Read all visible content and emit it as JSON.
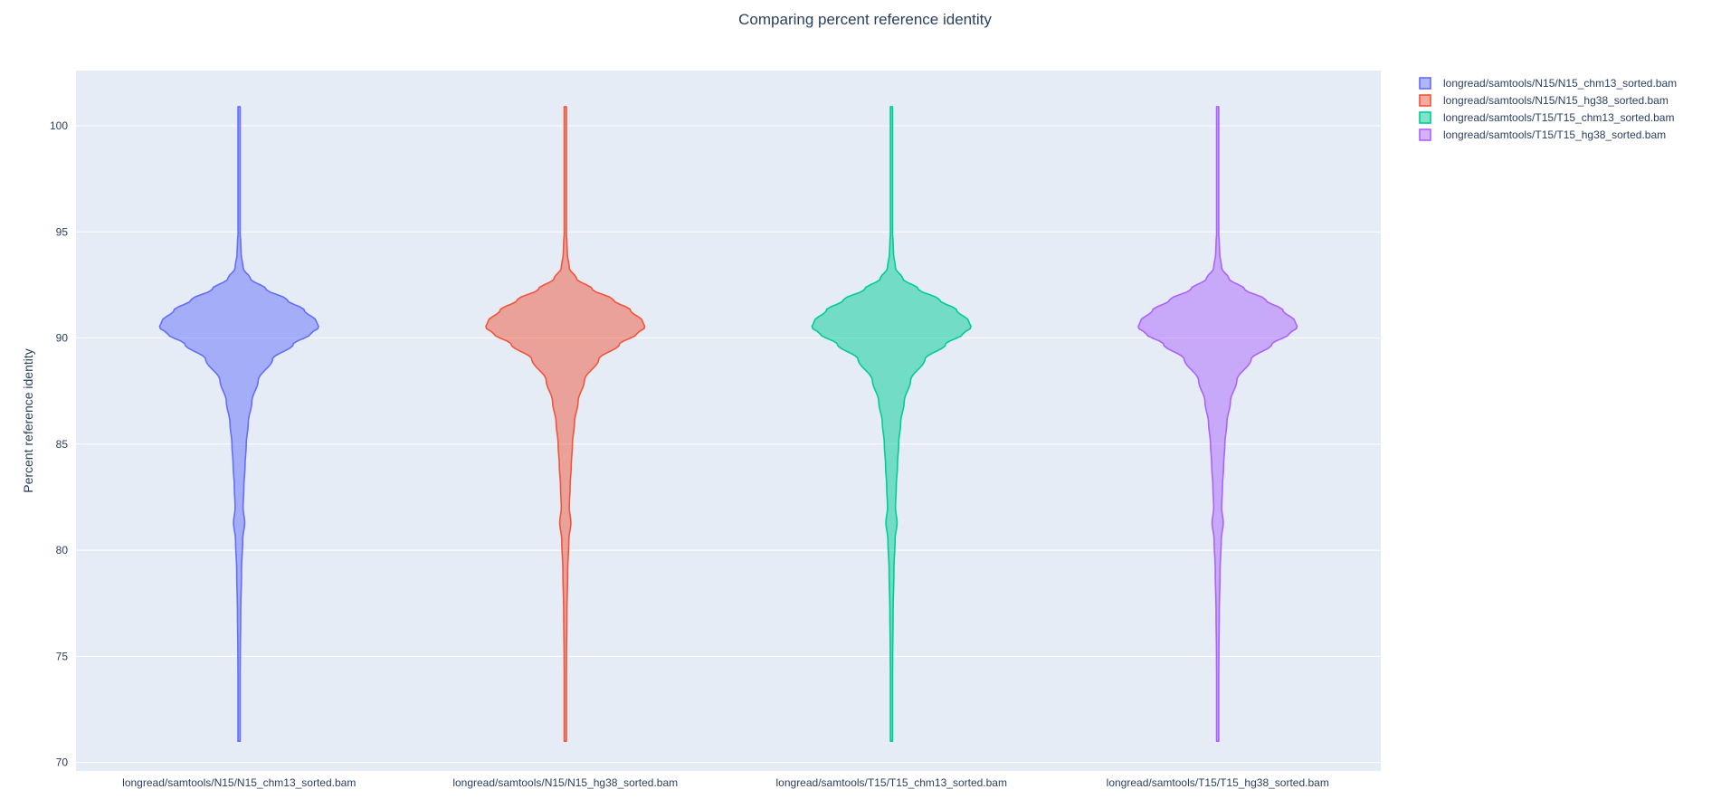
{
  "chart_data": {
    "type": "violin",
    "title": "Comparing percent reference identity",
    "ylabel": "Percent reference identity",
    "xlabel": "",
    "ylim": [
      69.6,
      102.6
    ],
    "yticks": [
      70,
      75,
      80,
      85,
      90,
      95,
      100
    ],
    "grid": true,
    "legend_position": "top-right",
    "plot_background": "#e5ecf6",
    "categories": [
      "longread/samtools/N15/N15_chm13_sorted.bam",
      "longread/samtools/N15/N15_hg38_sorted.bam",
      "longread/samtools/T15/T15_chm13_sorted.bam",
      "longread/samtools/T15/T15_hg38_sorted.bam"
    ],
    "series": [
      {
        "name": "longread/samtools/N15/N15_chm13_sorted.bam",
        "line_color": "#636efa",
        "fill_color": "rgba(99,110,250,0.5)",
        "y_min": 71.0,
        "y_max": 100.9,
        "mode": 90.5,
        "density_profile": [
          [
            71.0,
            0.0
          ],
          [
            73,
            0.01
          ],
          [
            75,
            0.015
          ],
          [
            77,
            0.02
          ],
          [
            79,
            0.03
          ],
          [
            80.5,
            0.045
          ],
          [
            81.3,
            0.07
          ],
          [
            82,
            0.05
          ],
          [
            83,
            0.06
          ],
          [
            84,
            0.075
          ],
          [
            85,
            0.09
          ],
          [
            86,
            0.115
          ],
          [
            87,
            0.16
          ],
          [
            88,
            0.24
          ],
          [
            89,
            0.42
          ],
          [
            89.7,
            0.68
          ],
          [
            90.2,
            0.9
          ],
          [
            90.5,
            1.0
          ],
          [
            90.8,
            0.97
          ],
          [
            91.3,
            0.82
          ],
          [
            91.8,
            0.6
          ],
          [
            92.3,
            0.34
          ],
          [
            92.8,
            0.14
          ],
          [
            93.3,
            0.05
          ],
          [
            94,
            0.025
          ],
          [
            94.5,
            0.02
          ],
          [
            95,
            0.012
          ],
          [
            97,
            0.008
          ],
          [
            100.9,
            0.0
          ]
        ]
      },
      {
        "name": "longread/samtools/N15/N15_hg38_sorted.bam",
        "line_color": "#ef553b",
        "fill_color": "rgba(239,85,59,0.5)",
        "y_min": 71.0,
        "y_max": 100.9,
        "mode": 90.5,
        "density_profile": [
          [
            71.0,
            0.0
          ],
          [
            73,
            0.01
          ],
          [
            75,
            0.015
          ],
          [
            77,
            0.02
          ],
          [
            79,
            0.03
          ],
          [
            80.5,
            0.045
          ],
          [
            81.3,
            0.07
          ],
          [
            82,
            0.05
          ],
          [
            83,
            0.06
          ],
          [
            84,
            0.075
          ],
          [
            85,
            0.09
          ],
          [
            86,
            0.115
          ],
          [
            87,
            0.16
          ],
          [
            88,
            0.24
          ],
          [
            89,
            0.42
          ],
          [
            89.7,
            0.68
          ],
          [
            90.2,
            0.9
          ],
          [
            90.5,
            1.0
          ],
          [
            90.8,
            0.97
          ],
          [
            91.3,
            0.82
          ],
          [
            91.8,
            0.6
          ],
          [
            92.3,
            0.34
          ],
          [
            92.8,
            0.14
          ],
          [
            93.3,
            0.05
          ],
          [
            94,
            0.025
          ],
          [
            94.5,
            0.02
          ],
          [
            95,
            0.012
          ],
          [
            97,
            0.008
          ],
          [
            100.9,
            0.0
          ]
        ]
      },
      {
        "name": "longread/samtools/T15/T15_chm13_sorted.bam",
        "line_color": "#00cc96",
        "fill_color": "rgba(0,204,150,0.5)",
        "y_min": 71.0,
        "y_max": 100.9,
        "mode": 90.5,
        "density_profile": [
          [
            71.0,
            0.0
          ],
          [
            73,
            0.01
          ],
          [
            75,
            0.015
          ],
          [
            77,
            0.02
          ],
          [
            79,
            0.03
          ],
          [
            80.5,
            0.045
          ],
          [
            81.3,
            0.07
          ],
          [
            82,
            0.05
          ],
          [
            83,
            0.06
          ],
          [
            84,
            0.075
          ],
          [
            85,
            0.09
          ],
          [
            86,
            0.115
          ],
          [
            87,
            0.16
          ],
          [
            88,
            0.24
          ],
          [
            89,
            0.42
          ],
          [
            89.7,
            0.68
          ],
          [
            90.2,
            0.9
          ],
          [
            90.5,
            1.0
          ],
          [
            90.8,
            0.97
          ],
          [
            91.3,
            0.82
          ],
          [
            91.8,
            0.6
          ],
          [
            92.3,
            0.34
          ],
          [
            92.8,
            0.14
          ],
          [
            93.3,
            0.05
          ],
          [
            94,
            0.025
          ],
          [
            94.5,
            0.02
          ],
          [
            95,
            0.012
          ],
          [
            97,
            0.008
          ],
          [
            100.9,
            0.0
          ]
        ]
      },
      {
        "name": "longread/samtools/T15/T15_hg38_sorted.bam",
        "line_color": "#ab63fa",
        "fill_color": "rgba(171,99,250,0.5)",
        "y_min": 71.0,
        "y_max": 100.9,
        "mode": 90.5,
        "density_profile": [
          [
            71.0,
            0.0
          ],
          [
            73,
            0.01
          ],
          [
            75,
            0.015
          ],
          [
            77,
            0.02
          ],
          [
            79,
            0.03
          ],
          [
            80.5,
            0.045
          ],
          [
            81.3,
            0.07
          ],
          [
            82,
            0.05
          ],
          [
            83,
            0.06
          ],
          [
            84,
            0.075
          ],
          [
            85,
            0.09
          ],
          [
            86,
            0.115
          ],
          [
            87,
            0.16
          ],
          [
            88,
            0.24
          ],
          [
            89,
            0.42
          ],
          [
            89.7,
            0.68
          ],
          [
            90.2,
            0.9
          ],
          [
            90.5,
            1.0
          ],
          [
            90.8,
            0.97
          ],
          [
            91.3,
            0.82
          ],
          [
            91.8,
            0.6
          ],
          [
            92.3,
            0.34
          ],
          [
            92.8,
            0.14
          ],
          [
            93.3,
            0.05
          ],
          [
            94,
            0.025
          ],
          [
            94.5,
            0.02
          ],
          [
            95,
            0.012
          ],
          [
            97,
            0.008
          ],
          [
            100.9,
            0.0
          ]
        ]
      }
    ]
  }
}
